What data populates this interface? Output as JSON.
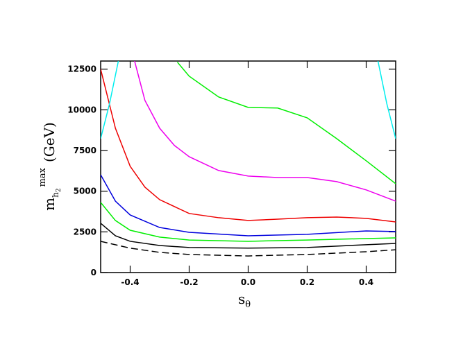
{
  "chart_data": {
    "type": "line",
    "xlabel": {
      "base": "s",
      "sub": "θ"
    },
    "ylabel": {
      "base": "m",
      "sub": "h",
      "subsub": "2",
      "sup": "max",
      "unit": "(GeV)"
    },
    "xlim": [
      -0.5,
      0.5
    ],
    "ylim": [
      0,
      13000
    ],
    "xticks": [
      {
        "value": -0.4,
        "label": "-0.4"
      },
      {
        "value": -0.2,
        "label": "-0.2"
      },
      {
        "value": 0,
        "label": "0.0"
      },
      {
        "value": 0.2,
        "label": "0.2"
      },
      {
        "value": 0.4,
        "label": "0.4"
      }
    ],
    "yticks": [
      0,
      2500,
      5000,
      7500,
      10000,
      12500
    ],
    "series": [
      {
        "color": "#000000",
        "dash": true,
        "x": [
          -0.5,
          -0.4,
          -0.3,
          -0.2,
          0,
          0.2,
          0.4,
          0.5
        ],
        "values": [
          1920,
          1500,
          1240,
          1110,
          1020,
          1110,
          1280,
          1400
        ]
      },
      {
        "color": "#000000",
        "x": [
          -0.5,
          -0.45,
          -0.4,
          -0.3,
          -0.2,
          0,
          0.2,
          0.4,
          0.5
        ],
        "values": [
          3030,
          2260,
          1920,
          1660,
          1540,
          1500,
          1540,
          1710,
          1790
        ]
      },
      {
        "color": "#00ee00",
        "x": [
          -0.5,
          -0.45,
          -0.4,
          -0.3,
          -0.2,
          0,
          0.2,
          0.4,
          0.5
        ],
        "values": [
          4310,
          3200,
          2600,
          2180,
          2000,
          1920,
          2000,
          2090,
          2130
        ]
      },
      {
        "color": "#0000dd",
        "x": [
          -0.5,
          -0.45,
          -0.4,
          -0.3,
          -0.2,
          0,
          0.2,
          0.4,
          0.5
        ],
        "values": [
          6010,
          4390,
          3540,
          2770,
          2470,
          2260,
          2350,
          2560,
          2520
        ]
      },
      {
        "color": "#ee0000",
        "x": [
          -0.5,
          -0.45,
          -0.4,
          -0.35,
          -0.3,
          -0.2,
          -0.1,
          0,
          0.1,
          0.2,
          0.3,
          0.4,
          0.5
        ],
        "values": [
          12500,
          8870,
          6530,
          5250,
          4480,
          3630,
          3370,
          3200,
          3280,
          3370,
          3410,
          3330,
          3110
        ]
      },
      {
        "color": "#ee00ee",
        "x": [
          -0.385,
          -0.35,
          -0.3,
          -0.25,
          -0.2,
          -0.1,
          0,
          0.1,
          0.2,
          0.3,
          0.4,
          0.5
        ],
        "values": [
          13000,
          10580,
          8870,
          7810,
          7120,
          6270,
          5930,
          5840,
          5840,
          5590,
          5080,
          4390
        ]
      },
      {
        "color": "#00ee00",
        "x": [
          -0.24,
          -0.2,
          -0.1,
          0,
          0.1,
          0.2,
          0.3,
          0.4,
          0.5
        ],
        "values": [
          12930,
          12070,
          10790,
          10150,
          10110,
          9510,
          8230,
          6870,
          5460
        ]
      },
      {
        "color": "#00eeee",
        "x": [
          -0.5,
          -0.47,
          -0.44
        ],
        "values": [
          8230,
          10370,
          13000
        ]
      },
      {
        "color": "#00eeee",
        "x": [
          0.44,
          0.47,
          0.5
        ],
        "values": [
          13000,
          10370,
          8230
        ]
      }
    ]
  }
}
